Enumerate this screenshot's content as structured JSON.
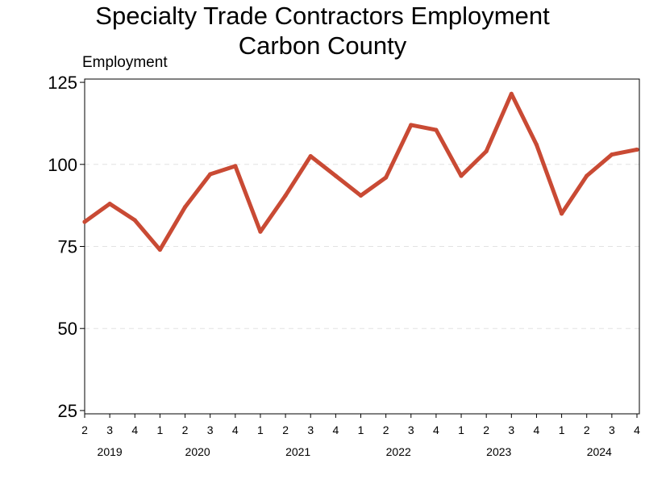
{
  "chart_data": {
    "type": "line",
    "title": "Specialty Trade Contractors Employment",
    "subtitle": "Carbon County",
    "ylabel": "Employment",
    "ylim": [
      24,
      126
    ],
    "yticks": [
      25,
      50,
      75,
      100,
      125
    ],
    "grid": "horizontal dashed",
    "line_color": "#c94a34",
    "categories": [
      {
        "quarter": "2",
        "year": "2019"
      },
      {
        "quarter": "3",
        "year": "2019"
      },
      {
        "quarter": "4",
        "year": "2019"
      },
      {
        "quarter": "1",
        "year": "2020"
      },
      {
        "quarter": "2",
        "year": "2020"
      },
      {
        "quarter": "3",
        "year": "2020"
      },
      {
        "quarter": "4",
        "year": "2020"
      },
      {
        "quarter": "1",
        "year": "2021"
      },
      {
        "quarter": "2",
        "year": "2021"
      },
      {
        "quarter": "3",
        "year": "2021"
      },
      {
        "quarter": "4",
        "year": "2021"
      },
      {
        "quarter": "1",
        "year": "2022"
      },
      {
        "quarter": "2",
        "year": "2022"
      },
      {
        "quarter": "3",
        "year": "2022"
      },
      {
        "quarter": "4",
        "year": "2022"
      },
      {
        "quarter": "1",
        "year": "2023"
      },
      {
        "quarter": "2",
        "year": "2023"
      },
      {
        "quarter": "3",
        "year": "2023"
      },
      {
        "quarter": "4",
        "year": "2023"
      },
      {
        "quarter": "1",
        "year": "2024"
      },
      {
        "quarter": "2",
        "year": "2024"
      },
      {
        "quarter": "3",
        "year": "2024"
      },
      {
        "quarter": "4",
        "year": "2024"
      }
    ],
    "years": [
      "2019",
      "2020",
      "2021",
      "2022",
      "2023",
      "2024"
    ],
    "series": [
      {
        "values": [
          82.5,
          88,
          83,
          74,
          87,
          97,
          99.5,
          79.5,
          90.5,
          102.5,
          96.5,
          90.5,
          96,
          112,
          110.5,
          96.5,
          104,
          121.5,
          106,
          85,
          96.5,
          103,
          104.5
        ]
      }
    ]
  }
}
